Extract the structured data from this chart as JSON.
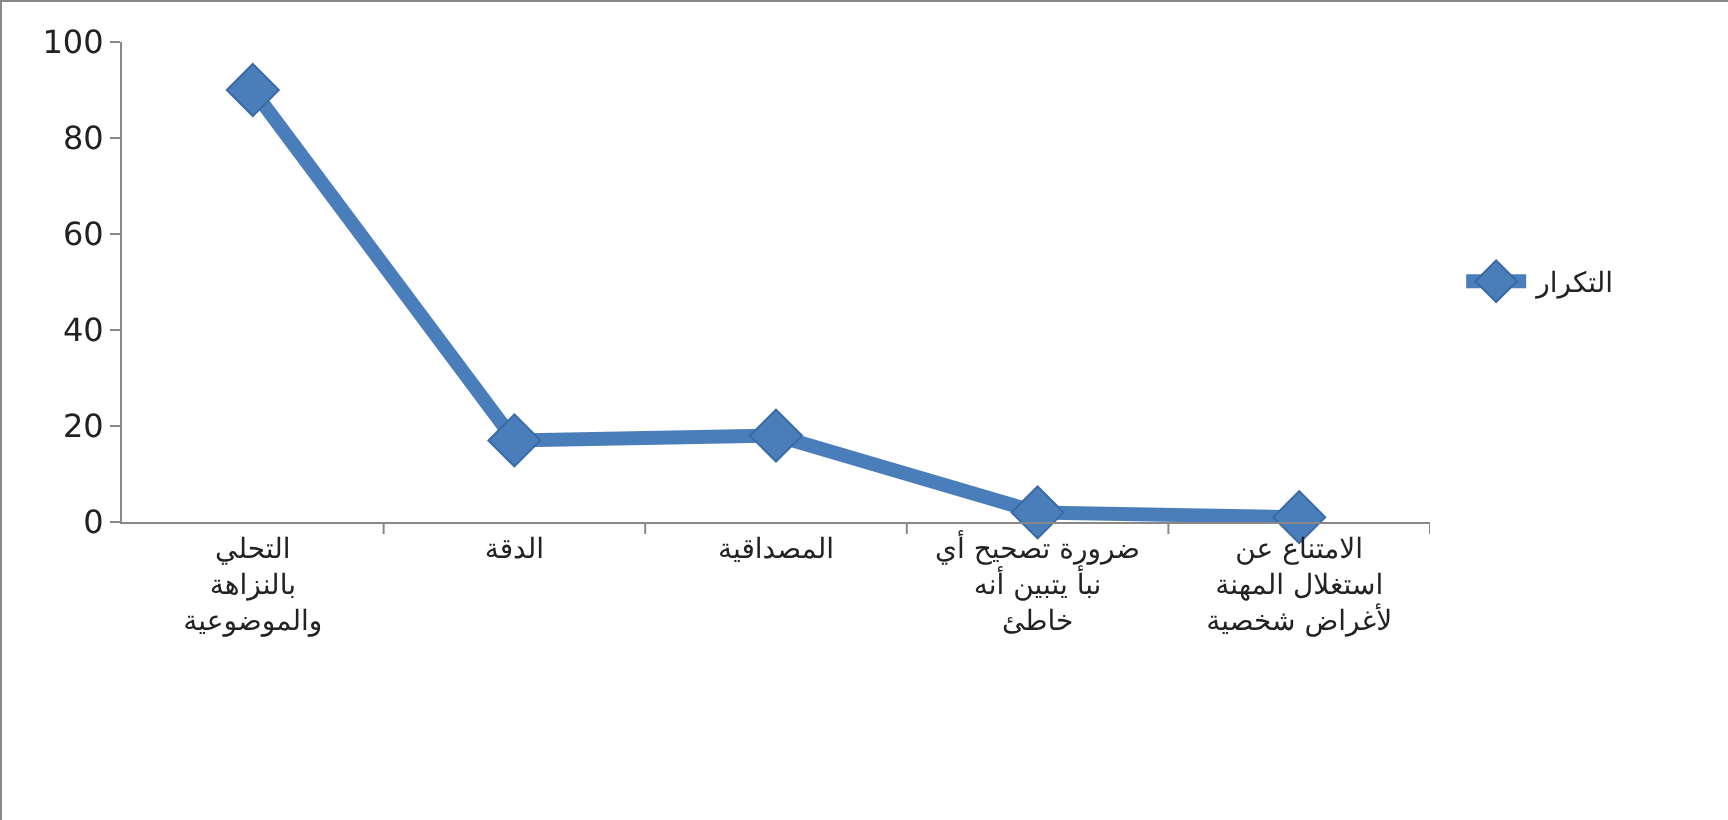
{
  "chart_data": {
    "type": "line",
    "categories": [
      "التحلي بالنزاهة والموضوعية",
      "الدقة",
      "المصداقية",
      "ضرورة تصحيح أي نبأ يتبين أنه خاطئ",
      "الامتناع عن استغلال المهنة لأغراض شخصية"
    ],
    "series": [
      {
        "name": "التكرار",
        "color": "#4a7ebb",
        "values": [
          90,
          17,
          18,
          2,
          1
        ]
      }
    ],
    "ylim": [
      0,
      100
    ],
    "yticks": [
      0,
      20,
      40,
      60,
      80,
      100
    ],
    "grid": false,
    "legend": "right",
    "marker": "diamond",
    "line_style": "solid"
  }
}
